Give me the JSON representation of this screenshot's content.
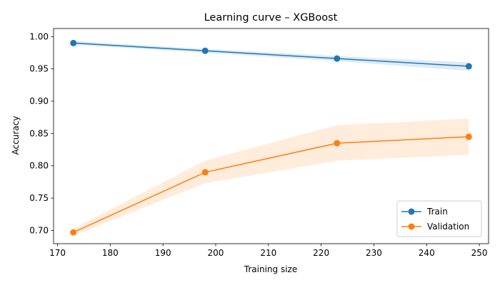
{
  "chart_data": {
    "type": "line",
    "title": "Learning curve – XGBoost",
    "xlabel": "Training size",
    "ylabel": "Accuracy",
    "xlim": [
      169.25,
      251.75
    ],
    "ylim": [
      0.6795,
      1.0125
    ],
    "xticks": [
      170,
      180,
      190,
      200,
      210,
      220,
      230,
      240,
      250
    ],
    "yticks": [
      0.7,
      0.75,
      0.8,
      0.85,
      0.9,
      0.95,
      1.0
    ],
    "x": [
      173,
      198,
      223,
      248
    ],
    "grid": false,
    "legend_position": "lower right",
    "series": [
      {
        "name": "Train",
        "color": "#1f77b4",
        "marker": "circle",
        "values": [
          0.99,
          0.978,
          0.966,
          0.954
        ],
        "band_lower": [
          0.987,
          0.975,
          0.962,
          0.947
        ],
        "band_upper": [
          0.993,
          0.981,
          0.97,
          0.96
        ]
      },
      {
        "name": "Validation",
        "color": "#ff7f0e",
        "marker": "circle",
        "values": [
          0.697,
          0.79,
          0.835,
          0.845
        ],
        "band_lower": [
          0.692,
          0.773,
          0.808,
          0.817
        ],
        "band_upper": [
          0.703,
          0.808,
          0.863,
          0.873
        ]
      }
    ]
  }
}
